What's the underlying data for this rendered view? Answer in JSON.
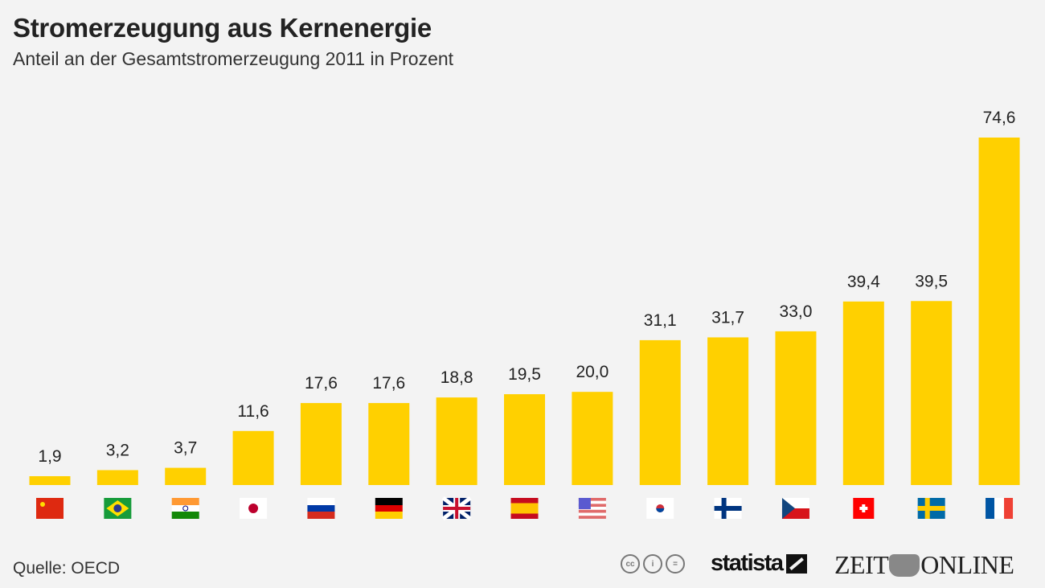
{
  "chart_data": {
    "type": "bar",
    "title": "Stromerzeugung aus Kernenergie",
    "subtitle": "Anteil an der Gesamtstromerzeugung 2011 in Prozent",
    "categories": [
      "cn",
      "br",
      "in",
      "jp",
      "ru",
      "de",
      "gb",
      "es",
      "us",
      "kr",
      "fi",
      "cz",
      "ch",
      "se",
      "fr"
    ],
    "values": [
      1.9,
      3.2,
      3.7,
      11.6,
      17.6,
      17.6,
      18.8,
      19.5,
      20.0,
      31.1,
      31.7,
      33.0,
      39.4,
      39.5,
      74.6
    ],
    "value_labels": [
      "1,9",
      "3,2",
      "3,7",
      "11,6",
      "17,6",
      "17,6",
      "18,8",
      "19,5",
      "20,0",
      "31,1",
      "31,7",
      "33,0",
      "39,4",
      "39,5",
      "74,6"
    ],
    "xlabel": "",
    "ylabel": "",
    "ylim": [
      0,
      74.6
    ],
    "grid": false,
    "bar_color": "#ffd000"
  },
  "footer": {
    "source": "Quelle: OECD",
    "cc_icons": [
      "cc",
      "by",
      "nd"
    ],
    "statista": "statista",
    "zeit_left": "ZEIT",
    "zeit_right": "ONLINE"
  }
}
